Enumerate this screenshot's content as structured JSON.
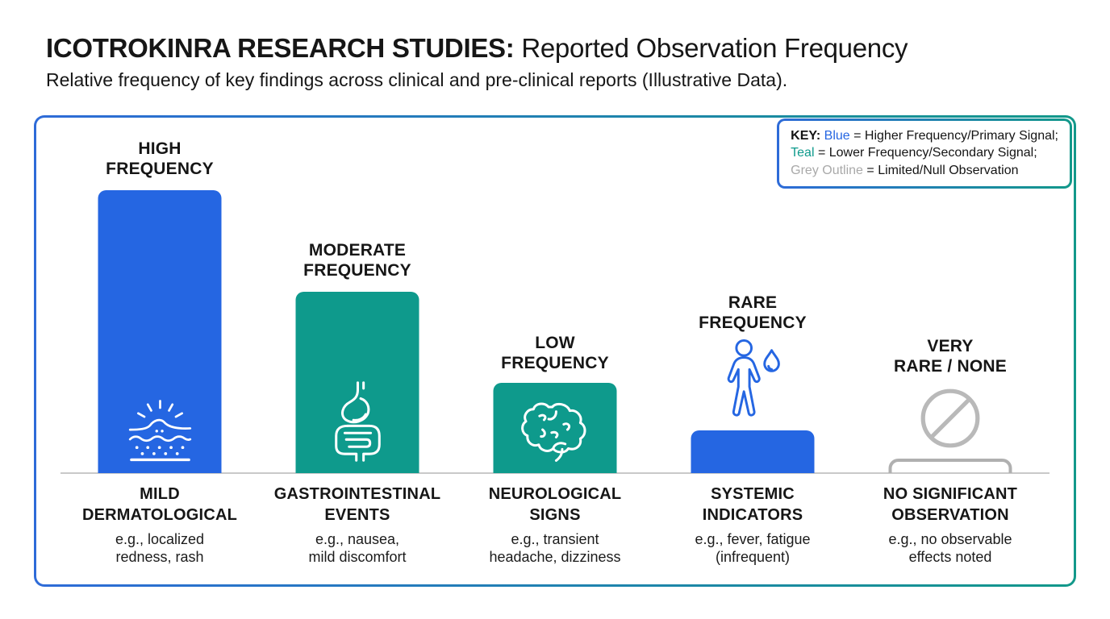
{
  "header": {
    "title_bold": "ICOTROKINRA RESEARCH STUDIES:",
    "title_regular": "Reported Observation Frequency",
    "subtitle": "Relative frequency of key findings across clinical and pre-clinical reports (Illustrative Data)."
  },
  "key": {
    "label": "KEY:",
    "entries": [
      {
        "term": "Blue",
        "definition": " = Higher Frequency/Primary Signal;"
      },
      {
        "term": "Teal",
        "definition": " = Lower Frequency/Secondary Signal;"
      },
      {
        "term": "Grey Outline",
        "definition": " = Limited/Null Observation"
      }
    ]
  },
  "colors": {
    "blue": "#2566e2",
    "teal": "#0e9a8c",
    "grey_outline": "#b0b0b0"
  },
  "chart_data": {
    "type": "bar",
    "title": "ICOTROKINRA RESEARCH STUDIES: Reported Observation Frequency",
    "subtitle": "Relative frequency of key findings across clinical and pre-clinical reports (Illustrative Data).",
    "categories": [
      "MILD DERMATOLOGICAL",
      "GASTROINTESTINAL EVENTS",
      "NEUROLOGICAL SIGNS",
      "SYSTEMIC INDICATORS",
      "NO SIGNIFICANT OBSERVATION"
    ],
    "values": [
      100,
      64,
      32,
      15,
      5
    ],
    "value_note": "relative frequency, illustrative; no numeric axis shown",
    "bar_labels": [
      "HIGH FREQUENCY",
      "MODERATE FREQUENCY",
      "LOW FREQUENCY",
      "RARE FREQUENCY",
      "VERY RARE / NONE"
    ],
    "bar_styles": [
      "blue-fill",
      "teal-fill",
      "teal-fill",
      "blue-fill",
      "grey-outline"
    ],
    "xlabel": "",
    "ylabel": "",
    "grid": false,
    "legend_position": "top-right"
  },
  "columns": [
    {
      "frequency_label": "HIGH\nFREQUENCY",
      "category": "MILD\nDERMATOLOGICAL",
      "example": "e.g., localized\nredness, rash",
      "icon": "skin-irritation-icon",
      "bar_style": "blue-fill"
    },
    {
      "frequency_label": "MODERATE\nFREQUENCY",
      "category": "GASTROINTESTINAL\nEVENTS",
      "example": "e.g., nausea,\nmild discomfort",
      "icon": "gastrointestinal-tract-icon",
      "bar_style": "teal-fill"
    },
    {
      "frequency_label": "LOW\nFREQUENCY",
      "category": "NEUROLOGICAL\nSIGNS",
      "example": "e.g., transient\nheadache, dizziness",
      "icon": "brain-icon",
      "bar_style": "teal-fill"
    },
    {
      "frequency_label": "RARE\nFREQUENCY",
      "category": "SYSTEMIC\nINDICATORS",
      "example": "e.g., fever, fatigue\n(infrequent)",
      "icon": "person-droplet-icon",
      "bar_style": "blue-fill"
    },
    {
      "frequency_label": "VERY\nRARE / NONE",
      "category": "NO SIGNIFICANT\nOBSERVATION",
      "example": "e.g., no observable\neffects noted",
      "icon": "prohibition-icon",
      "bar_style": "grey-outline"
    }
  ]
}
